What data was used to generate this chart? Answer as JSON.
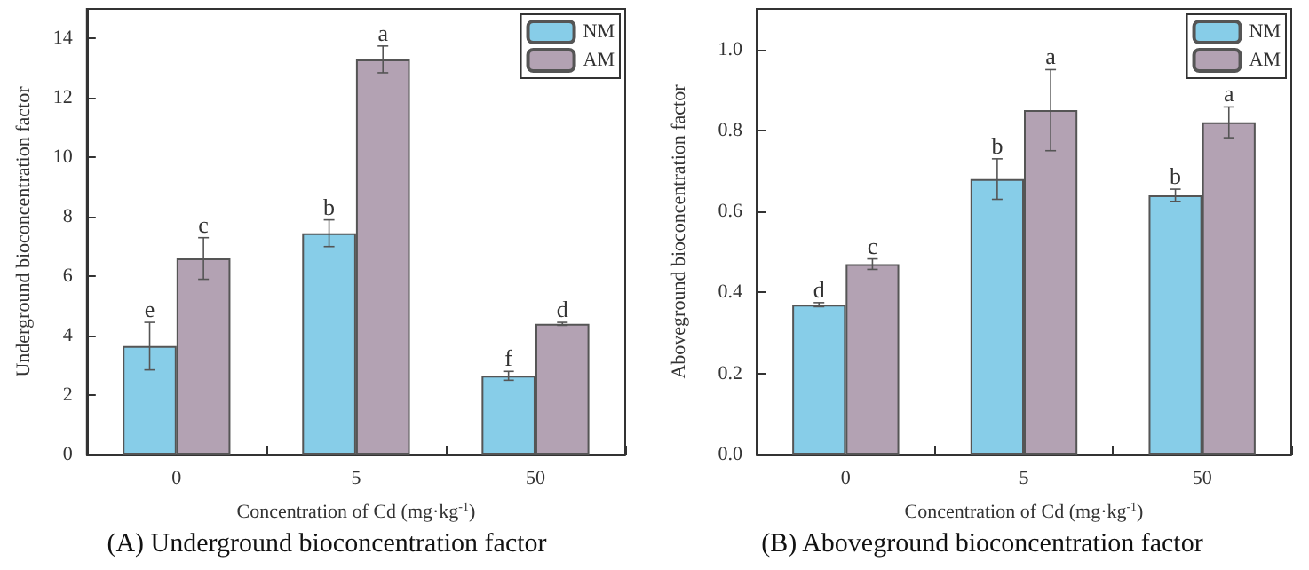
{
  "chart_data": [
    {
      "type": "bar",
      "title": "(A) Underground bioconcentration factor",
      "xlabel": "Concentration of Cd (mg·kg$^{-1}$)",
      "ylabel": "Underground bioconcentration factor",
      "categories": [
        "0",
        "5",
        "50"
      ],
      "series": [
        {
          "name": "NM",
          "color": "#87cde8",
          "values": [
            3.65,
            7.45,
            2.65
          ],
          "errors": [
            0.8,
            0.45,
            0.15
          ]
        },
        {
          "name": "AM",
          "color": "#b3a2b3",
          "values": [
            6.6,
            13.3,
            4.4
          ],
          "errors": [
            0.7,
            0.45,
            0.05
          ]
        }
      ],
      "ylim": [
        0,
        15
      ],
      "yticks": [
        0,
        2,
        4,
        6,
        8,
        10,
        12,
        14
      ],
      "grid": false,
      "legend": "top right",
      "annotations": [
        "e",
        "c",
        "b",
        "a",
        "f",
        "d"
      ]
    },
    {
      "type": "bar",
      "title": "(B) Aboveground bioconcentration factor",
      "xlabel": "Concentration of Cd (mg·kg$^{-1}$)",
      "ylabel": "Aboveground bioconcentration factor",
      "categories": [
        "0",
        "5",
        "50"
      ],
      "series": [
        {
          "name": "NM",
          "color": "#87cde8",
          "values": [
            0.37,
            0.68,
            0.64
          ],
          "errors": [
            0.005,
            0.05,
            0.015
          ]
        },
        {
          "name": "AM",
          "color": "#b3a2b3",
          "values": [
            0.47,
            0.85,
            0.82
          ],
          "errors": [
            0.013,
            0.1,
            0.038
          ]
        }
      ],
      "ylim": [
        0,
        1.1
      ],
      "yticks": [
        {
          "value": 0,
          "label": "0.0"
        },
        0.2,
        0.4,
        0.6,
        0.8,
        {
          "value": 1,
          "label": "1.0"
        }
      ],
      "grid": false,
      "legend": "top right",
      "annotations": [
        "d",
        "c",
        "b",
        "a",
        "b",
        "a"
      ]
    }
  ]
}
